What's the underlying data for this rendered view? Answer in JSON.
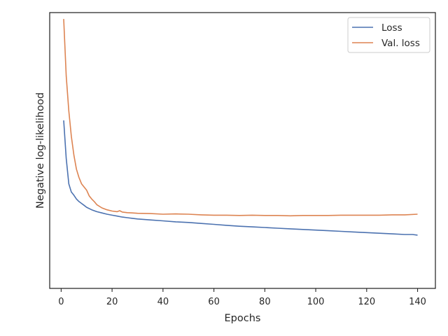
{
  "chart_data": {
    "type": "line",
    "title": "",
    "xlabel": "Epochs",
    "ylabel": "Negative log-likelihood",
    "xlim": [
      -4.5,
      147
    ],
    "ylim": [
      -0.25,
      4.1
    ],
    "y_ticks_shown": false,
    "xticks": [
      0,
      20,
      40,
      60,
      80,
      100,
      120,
      140
    ],
    "grid": false,
    "legend_position": "top-right",
    "series": [
      {
        "name": "Loss",
        "color": "#4c72b0",
        "x": [
          1,
          2,
          3,
          4,
          5,
          6,
          7,
          8,
          9,
          10,
          12,
          14,
          16,
          18,
          20,
          22,
          24,
          26,
          28,
          30,
          35,
          40,
          45,
          50,
          55,
          60,
          65,
          70,
          75,
          80,
          85,
          90,
          95,
          100,
          105,
          110,
          115,
          120,
          125,
          130,
          135,
          138,
          140
        ],
        "y": [
          2.4,
          1.8,
          1.4,
          1.27,
          1.22,
          1.16,
          1.12,
          1.09,
          1.06,
          1.03,
          0.99,
          0.96,
          0.94,
          0.92,
          0.905,
          0.89,
          0.875,
          0.865,
          0.855,
          0.845,
          0.83,
          0.815,
          0.8,
          0.79,
          0.775,
          0.76,
          0.745,
          0.73,
          0.72,
          0.71,
          0.7,
          0.69,
          0.68,
          0.67,
          0.66,
          0.65,
          0.64,
          0.63,
          0.62,
          0.61,
          0.6,
          0.6,
          0.59
        ]
      },
      {
        "name": "Val. loss",
        "color": "#dd8452",
        "x": [
          1,
          2,
          3,
          4,
          5,
          6,
          7,
          8,
          9,
          10,
          11,
          12,
          13,
          14,
          16,
          18,
          20,
          22,
          23,
          24,
          26,
          28,
          30,
          35,
          40,
          45,
          50,
          55,
          60,
          65,
          70,
          75,
          80,
          85,
          90,
          95,
          100,
          105,
          110,
          115,
          120,
          125,
          130,
          135,
          140
        ],
        "y": [
          4.0,
          3.1,
          2.55,
          2.15,
          1.85,
          1.63,
          1.5,
          1.4,
          1.35,
          1.3,
          1.21,
          1.16,
          1.12,
          1.07,
          1.02,
          0.99,
          0.97,
          0.96,
          0.975,
          0.955,
          0.945,
          0.94,
          0.935,
          0.93,
          0.92,
          0.925,
          0.92,
          0.91,
          0.905,
          0.905,
          0.9,
          0.905,
          0.9,
          0.9,
          0.895,
          0.9,
          0.9,
          0.9,
          0.905,
          0.905,
          0.905,
          0.905,
          0.91,
          0.91,
          0.92
        ]
      }
    ]
  }
}
